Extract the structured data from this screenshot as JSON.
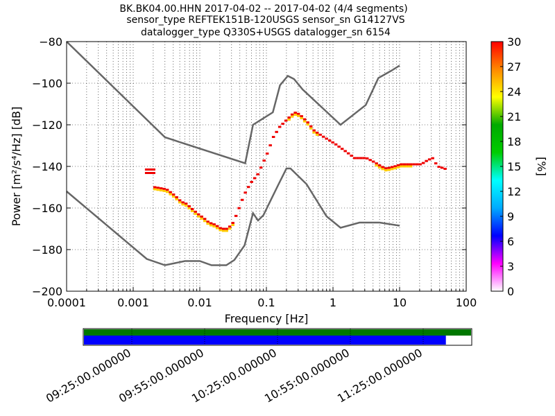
{
  "chart_data": {
    "type": "heatmap",
    "title_lines": [
      "BK.BK04.00.HHN   2017-04-02 -- 2017-04-02  (4/4 segments)",
      "sensor_type REFTEK151B-120USGS sensor_sn G14127VS",
      "datalogger_type Q330S+USGS datalogger_sn 6154"
    ],
    "xlabel": "Frequency [Hz]",
    "ylabel": "Power [m²/s⁴/Hz] [dB]",
    "x_scale": "log",
    "xlim": [
      0.0001,
      100
    ],
    "ylim": [
      -200,
      -80
    ],
    "x_ticks": [
      {
        "value": 0.0001,
        "label": "0.0001"
      },
      {
        "value": 0.001,
        "label": "0.001"
      },
      {
        "value": 0.01,
        "label": "0.01"
      },
      {
        "value": 0.1,
        "label": "0.1"
      },
      {
        "value": 1,
        "label": "1"
      },
      {
        "value": 10,
        "label": "10"
      },
      {
        "value": 100,
        "label": "100"
      }
    ],
    "y_ticks": [
      {
        "value": -80,
        "label": "−80"
      },
      {
        "value": -100,
        "label": "−100"
      },
      {
        "value": -120,
        "label": "−120"
      },
      {
        "value": -140,
        "label": "−140"
      },
      {
        "value": -160,
        "label": "−160"
      },
      {
        "value": -180,
        "label": "−180"
      },
      {
        "value": -200,
        "label": "−200"
      }
    ],
    "grid": true,
    "noise_model_high": [
      [
        0.0001,
        -80
      ],
      [
        0.003,
        -126
      ],
      [
        0.048,
        -138.5
      ],
      [
        0.063,
        -120
      ],
      [
        0.125,
        -114
      ],
      [
        0.16,
        -101
      ],
      [
        0.21,
        -96.5
      ],
      [
        0.26,
        -98
      ],
      [
        0.35,
        -103
      ],
      [
        1.3,
        -120
      ],
      [
        3.1,
        -110.5
      ],
      [
        4.8,
        -97.5
      ],
      [
        7.5,
        -94
      ],
      [
        10,
        -91.5
      ]
    ],
    "noise_model_low": [
      [
        0.0001,
        -152
      ],
      [
        0.0016,
        -184.5
      ],
      [
        0.003,
        -187.5
      ],
      [
        0.006,
        -185.5
      ],
      [
        0.01,
        -185.5
      ],
      [
        0.015,
        -187.5
      ],
      [
        0.025,
        -187.5
      ],
      [
        0.033,
        -185
      ],
      [
        0.047,
        -178
      ],
      [
        0.063,
        -162.5
      ],
      [
        0.075,
        -166
      ],
      [
        0.09,
        -163.5
      ],
      [
        0.15,
        -149
      ],
      [
        0.2,
        -141
      ],
      [
        0.23,
        -141
      ],
      [
        0.4,
        -148.5
      ],
      [
        0.8,
        -164
      ],
      [
        1.3,
        -169.5
      ],
      [
        2.5,
        -167
      ],
      [
        5,
        -167
      ],
      [
        10,
        -168.5
      ]
    ],
    "psd_mode_curve": [
      [
        0.0015,
        -142
      ],
      [
        0.002,
        -150
      ],
      [
        0.003,
        -151
      ],
      [
        0.004,
        -154
      ],
      [
        0.005,
        -157
      ],
      [
        0.006,
        -158
      ],
      [
        0.007,
        -160
      ],
      [
        0.009,
        -163
      ],
      [
        0.011,
        -165
      ],
      [
        0.013,
        -167
      ],
      [
        0.016,
        -168
      ],
      [
        0.02,
        -170
      ],
      [
        0.025,
        -170
      ],
      [
        0.03,
        -167
      ],
      [
        0.035,
        -162
      ],
      [
        0.04,
        -157
      ],
      [
        0.045,
        -153
      ],
      [
        0.055,
        -148
      ],
      [
        0.07,
        -144
      ],
      [
        0.08,
        -140
      ],
      [
        0.1,
        -133
      ],
      [
        0.12,
        -126
      ],
      [
        0.15,
        -121
      ],
      [
        0.2,
        -117
      ],
      [
        0.25,
        -114
      ],
      [
        0.3,
        -115
      ],
      [
        0.4,
        -119
      ],
      [
        0.5,
        -123
      ],
      [
        0.7,
        -126
      ],
      [
        1,
        -129
      ],
      [
        1.5,
        -133
      ],
      [
        2,
        -136
      ],
      [
        3,
        -136
      ],
      [
        4,
        -138
      ],
      [
        5,
        -140
      ],
      [
        6,
        -141
      ],
      [
        8,
        -140
      ],
      [
        10,
        -139
      ],
      [
        20,
        -139
      ],
      [
        25,
        -137
      ],
      [
        30,
        -136
      ],
      [
        35,
        -140
      ],
      [
        45,
        -141
      ],
      [
        50,
        -142
      ]
    ],
    "colorbar": {
      "label": "[%]",
      "range": [
        0,
        30
      ],
      "ticks": [
        "0",
        "3",
        "6",
        "9",
        "12",
        "15",
        "18",
        "21",
        "24",
        "27",
        "30"
      ],
      "colors": [
        "#ffffff",
        "#ff00ff",
        "#0000ff",
        "#00aaff",
        "#00ffff",
        "#00cc00",
        "#00aa00",
        "#ffff00",
        "#ff8800",
        "#ff0000"
      ]
    },
    "data_coverage": {
      "time_labels": [
        "09:25:00.000000",
        "09:55:00.000000",
        "10:25:00.000000",
        "10:55:00.000000",
        "11:25:00.000000"
      ],
      "green_fraction": 1.0,
      "blue_fraction": 0.935,
      "green_color": "#007700",
      "blue_color": "#0000ff"
    }
  }
}
